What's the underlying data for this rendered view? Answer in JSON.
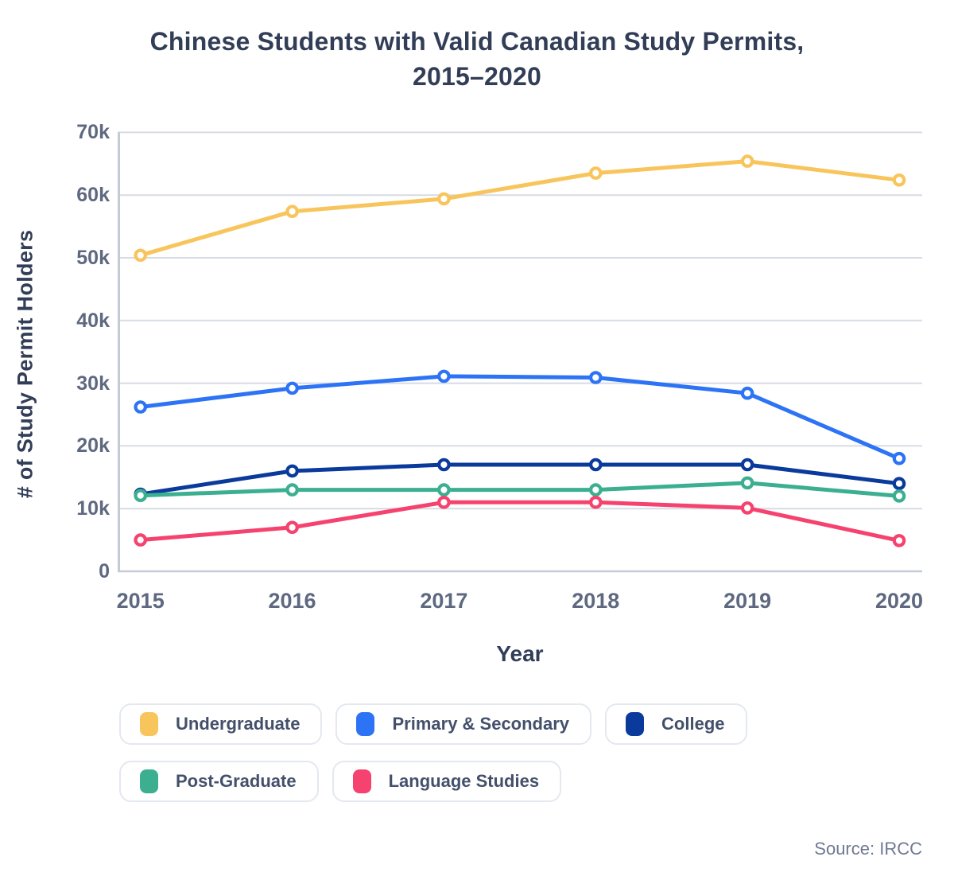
{
  "chart_data": {
    "type": "line",
    "title": "Chinese Students with Valid Canadian Study Permits, 2015–2020",
    "title_lines": [
      "Chinese Students with Valid Canadian Study Permits,",
      "2015–2020"
    ],
    "xlabel": "Year",
    "ylabel": "# of Study Permit Holders",
    "unit": "thousands of study permit holders",
    "categories": [
      "2015",
      "2016",
      "2017",
      "2018",
      "2019",
      "2020"
    ],
    "ylim": [
      0,
      70
    ],
    "grid": "horizontal",
    "legend_position": "bottom",
    "yticks": {
      "values": [
        0,
        10,
        20,
        30,
        40,
        50,
        60,
        70
      ],
      "labels": [
        "0",
        "10k",
        "20k",
        "30k",
        "40k",
        "50k",
        "60k",
        "70k"
      ]
    },
    "series": [
      {
        "name": "Undergraduate",
        "color": "#f8c55c",
        "values": [
          50.4,
          57.4,
          59.4,
          63.5,
          65.4,
          62.4
        ]
      },
      {
        "name": "Primary & Secondary",
        "color": "#2d73f5",
        "values": [
          26.2,
          29.2,
          31.1,
          30.9,
          28.4,
          18.0
        ]
      },
      {
        "name": "College",
        "color": "#0a3a9b",
        "values": [
          12.3,
          16.0,
          17.0,
          17.0,
          17.0,
          14.0
        ]
      },
      {
        "name": "Post-Graduate",
        "color": "#3baf90",
        "values": [
          12.1,
          13.0,
          13.0,
          13.0,
          14.1,
          12.0
        ]
      },
      {
        "name": "Language Studies",
        "color": "#f5426e",
        "values": [
          5.0,
          7.0,
          11.0,
          11.0,
          10.1,
          4.9
        ]
      }
    ],
    "legend_rows": [
      [
        0,
        1,
        2
      ],
      [
        3,
        4
      ]
    ],
    "source": "Source: IRCC",
    "colors": {
      "title_text": "#323e57",
      "tick_text": "#5e6980",
      "gridline": "#d7dbe4",
      "axis_line": "#c4cbd7",
      "legend_text": "#44506b",
      "legend_border": "#e4e8ef",
      "source_text": "#6f7993",
      "background": "#ffffff"
    }
  }
}
